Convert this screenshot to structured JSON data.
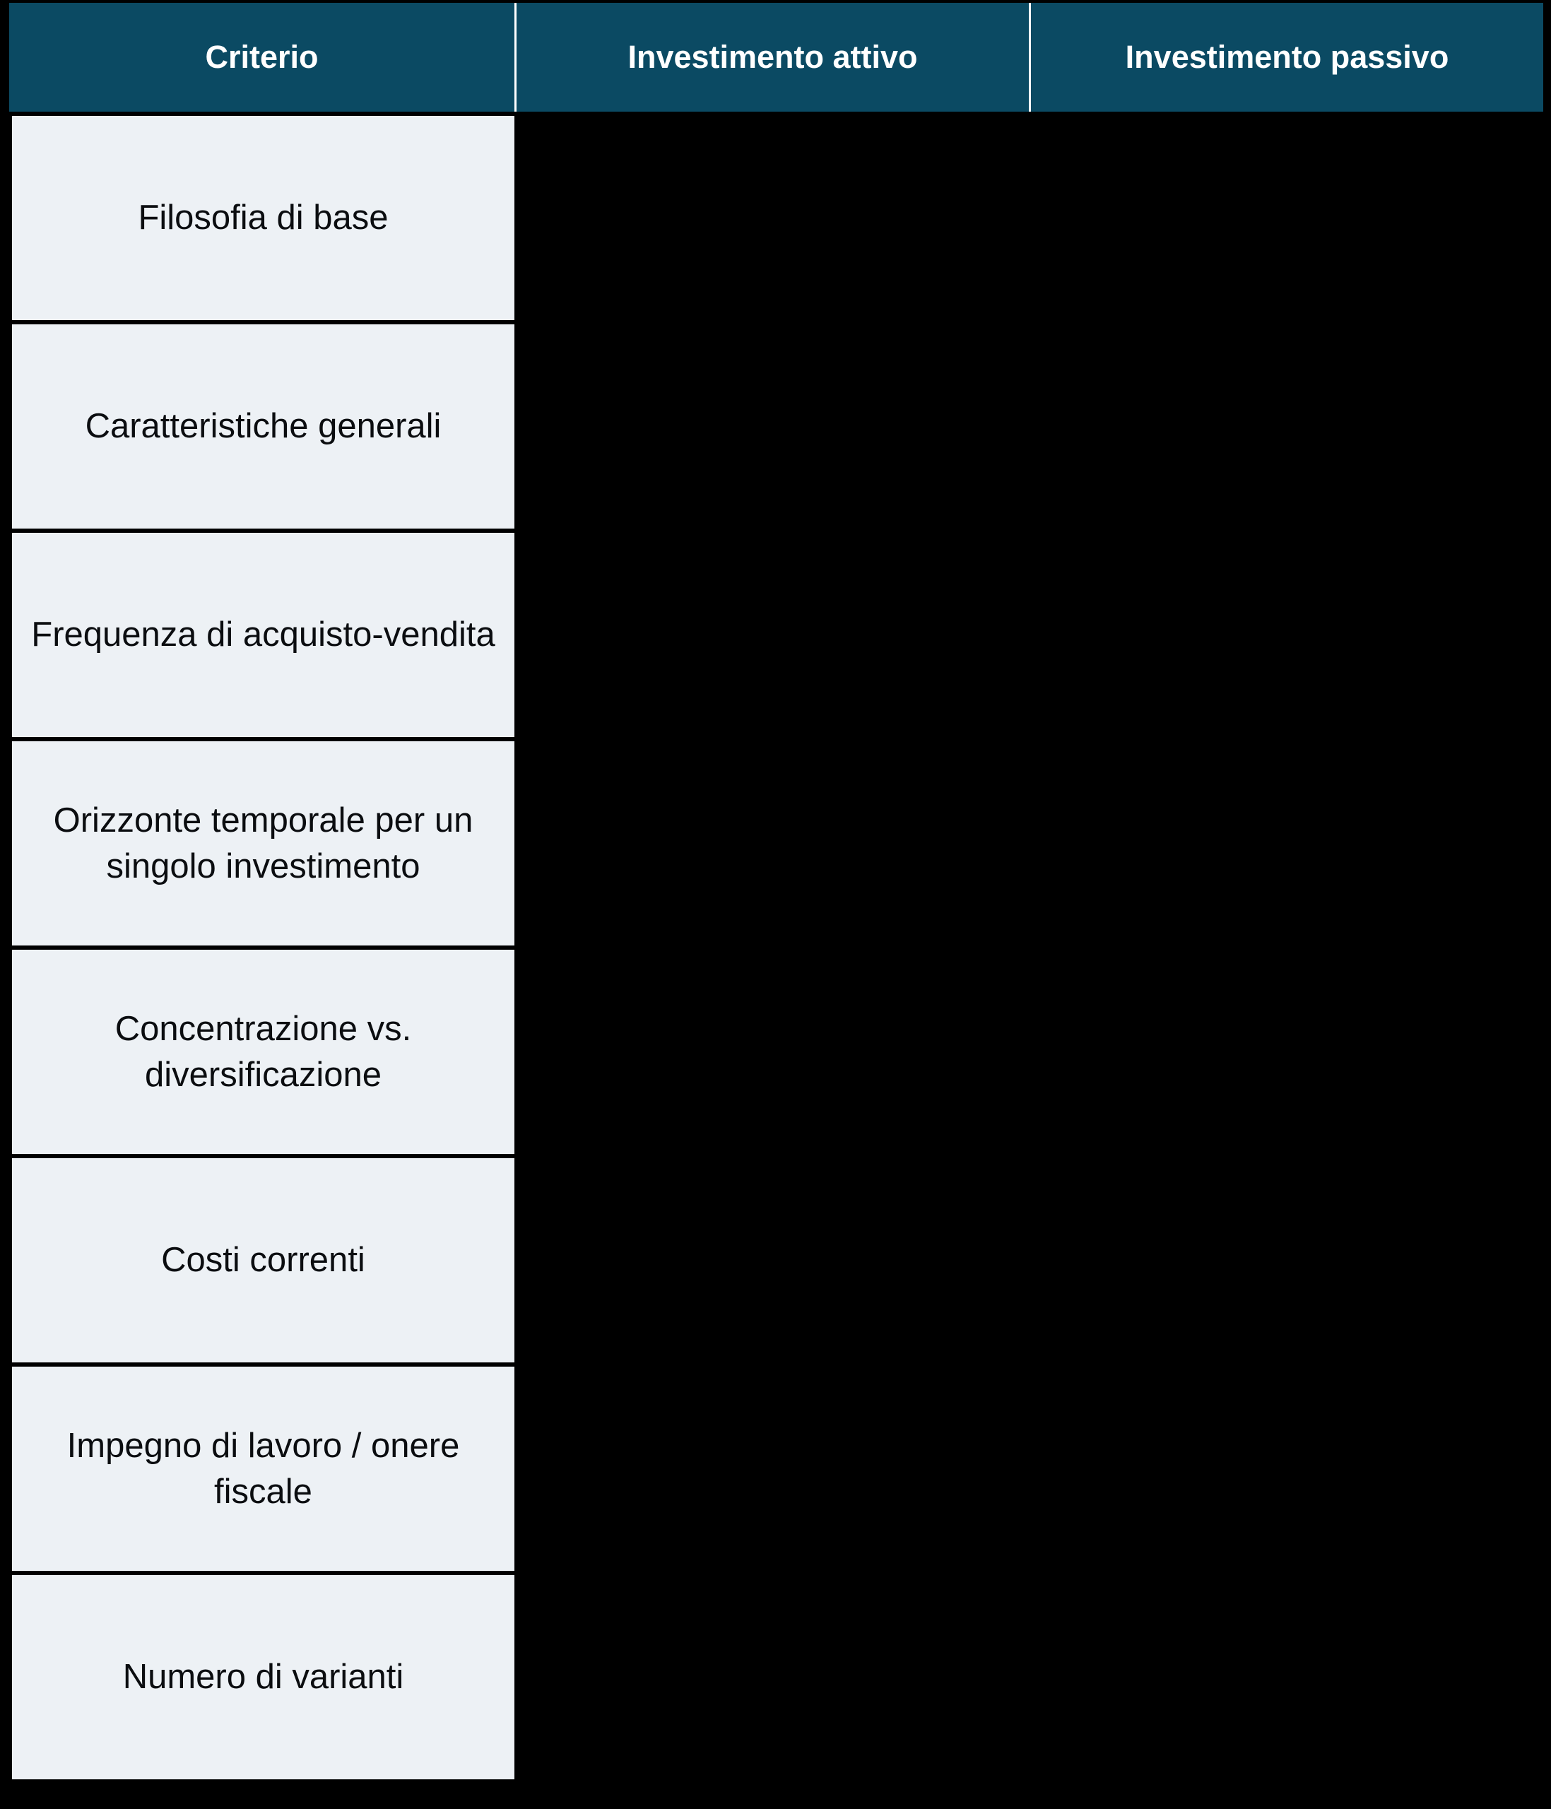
{
  "colors": {
    "canvas_bg": "#000000",
    "header_bg": "#0b4a63",
    "header_text": "#ffffff",
    "header_divider": "#ffffff",
    "row_bg": "#edf1f5",
    "row_text": "#0b0d10"
  },
  "chart_data": {
    "type": "table",
    "title": "",
    "columns": [
      "Criterio",
      "Investimento attivo",
      "Investimento passivo"
    ],
    "rows": [
      [
        "Filosofia di base",
        "",
        ""
      ],
      [
        "Caratteristiche generali",
        "",
        ""
      ],
      [
        "Frequenza di acquisto-vendita",
        "",
        ""
      ],
      [
        "Orizzonte temporale per un singolo investimento",
        "",
        ""
      ],
      [
        "Concentrazione vs. diversificazione",
        "",
        ""
      ],
      [
        "Costi correnti",
        "",
        ""
      ],
      [
        "Impegno di lavoro / onere fiscale",
        "",
        ""
      ],
      [
        "Numero di varianti",
        "",
        ""
      ]
    ],
    "layout": {
      "header_position": "top",
      "visible_body_columns": [
        "Criterio"
      ],
      "empty_cells_rendered_black": true,
      "grid": "black rules between rows, white dividers between header cells"
    }
  }
}
